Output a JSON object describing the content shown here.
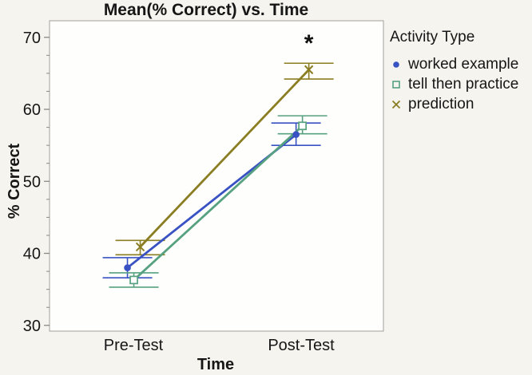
{
  "chart_data": {
    "type": "line",
    "title": "Mean(% Correct) vs. Time",
    "xlabel": "Time",
    "ylabel": "% Correct",
    "categories": [
      "Pre-Test",
      "Post-Test"
    ],
    "ylim": [
      29.2,
      72.3
    ],
    "yticks": [
      30,
      40,
      50,
      60,
      70
    ],
    "minor_tick_step": 2.5,
    "grid": false,
    "legend": {
      "title": "Activity Type",
      "position": "right"
    },
    "series": [
      {
        "name": "worked example",
        "marker": "filled-circle",
        "color": "#3952c3",
        "values": [
          38.0,
          56.5
        ],
        "ci_low": [
          36.6,
          55.0
        ],
        "ci_high": [
          39.4,
          58.1
        ]
      },
      {
        "name": "tell then practice",
        "marker": "open-square",
        "color": "#56a17f",
        "values": [
          36.3,
          57.7
        ],
        "ci_low": [
          35.3,
          56.6
        ],
        "ci_high": [
          37.3,
          59.1
        ]
      },
      {
        "name": "prediction",
        "marker": "x-cross",
        "color": "#8b7d22",
        "values": [
          40.9,
          65.5
        ],
        "ci_low": [
          39.8,
          64.2
        ],
        "ci_high": [
          41.8,
          66.4
        ]
      }
    ],
    "annotation": {
      "text": "*",
      "category": "Post-Test",
      "series": "prediction",
      "y_value": 69.3
    }
  },
  "ui": {
    "background_color": "#f5f4ee",
    "plot_background_color": "#fefefc",
    "frame_color": "#a2a09a",
    "tick_color": "#8b8984",
    "text_color": "#161616"
  }
}
